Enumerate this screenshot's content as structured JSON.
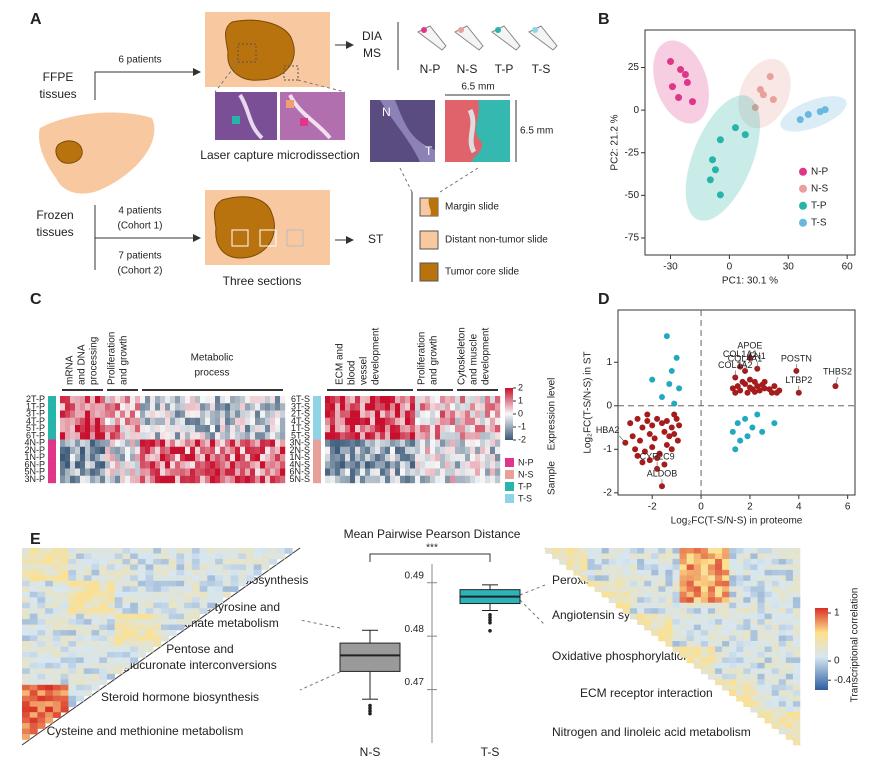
{
  "panel_labels": [
    "A",
    "B",
    "C",
    "D",
    "E"
  ],
  "panel_a": {
    "ffpe_label": [
      "FFPE",
      "tissues"
    ],
    "ffpe_patients": "6 patients",
    "lcm": "Laser capture microdissection",
    "dia_ms": [
      "DIA",
      "MS"
    ],
    "tubes": [
      "N-P",
      "N-S",
      "T-P",
      "T-S"
    ],
    "frozen_label": [
      "Frozen",
      "tissues"
    ],
    "cohort1": [
      "4 patients",
      "(Cohort 1)"
    ],
    "cohort2": [
      "7 patients",
      "(Cohort 2)"
    ],
    "sections": "Three sections",
    "st": "ST",
    "slide_letters": [
      "N",
      "T"
    ],
    "scale": [
      "6.5 mm",
      "6.5 mm"
    ],
    "slides": [
      "Margin slide",
      "Distant non-tumor slide",
      "Tumor core slide"
    ]
  },
  "chart_data": [
    {
      "type": "scatter",
      "xlabel": "PC1: 30.1 %",
      "ylabel": "PC2: 21.2 %",
      "xlim": [
        -43,
        64
      ],
      "ylim": [
        -85,
        47
      ],
      "xticks": [
        -30,
        0,
        30,
        60
      ],
      "yticks": [
        25,
        0,
        -25,
        -50,
        -75
      ],
      "legend": "right",
      "series": [
        {
          "name": "N-P",
          "color": "#e0368a",
          "x": [
            -30.0,
            -22.4,
            -24.9,
            -29.0,
            -21.4,
            -25.9,
            -18.8
          ],
          "y": [
            28.5,
            20.9,
            23.8,
            13.8,
            16.2,
            7.4,
            5.0
          ]
        },
        {
          "name": "N-S",
          "color": "#e8a09a",
          "x": [
            20.8,
            15.8,
            22.4,
            17.3,
            13.2
          ],
          "y": [
            19.7,
            12.1,
            6.2,
            9.1,
            1.5
          ]
        },
        {
          "name": "T-P",
          "color": "#26b5a8",
          "x": [
            3.1,
            -4.6,
            -8.6,
            -9.7,
            -4.6,
            8.1,
            -7.1
          ],
          "y": [
            -10.3,
            -17.4,
            -29.1,
            -40.9,
            -49.7,
            -14.4,
            -35.0
          ]
        },
        {
          "name": "T-S",
          "color": "#6ab8e0",
          "x": [
            48.8,
            40.2,
            46.3,
            36.1
          ],
          "y": [
            0.3,
            -2.6,
            -0.9,
            -5.6
          ]
        }
      ]
    },
    {
      "type": "scatter",
      "xlabel": "Log₂FC(T-S/N-S) in proteome",
      "ylabel": "Log₂FC(T-S/N-S)  in ST",
      "xlim": [
        -3.4,
        6.3
      ],
      "ylim": [
        -2.05,
        2.2
      ],
      "xticks": [
        -2,
        0,
        2,
        4,
        6
      ],
      "yticks": [
        1,
        0,
        -1,
        -2
      ],
      "series": [
        {
          "color": "#a51c1c",
          "x": [
            1.3,
            1.5,
            1.6,
            1.8,
            2.0,
            2.1,
            2.2,
            2.3,
            2.4,
            2.5,
            2.6,
            2.8,
            3.0,
            3.2,
            1.4,
            1.7,
            1.9,
            2.2,
            2.6,
            2.9,
            3.1,
            1.6,
            2.0,
            2.3,
            1.8,
            2.0,
            1.4,
            3.9,
            4.0,
            5.5,
            -2.9,
            -2.6,
            -2.4,
            -2.2,
            -2.0,
            -1.8,
            -1.6,
            -1.4,
            -1.2,
            -1.0,
            -0.9,
            -2.8,
            -2.5,
            -2.1,
            -1.9,
            -1.5,
            -1.3,
            -1.1,
            -2.7,
            -2.3,
            -2.0,
            -1.7,
            -1.4,
            -1.2,
            -0.95,
            -2.4,
            -2.1,
            -1.8,
            -1.5,
            -3.1,
            -1.8,
            -1.6,
            -2.2,
            -1.1,
            -2.6
          ],
          "y": [
            0.4,
            0.45,
            0.35,
            0.5,
            0.42,
            0.38,
            0.55,
            0.45,
            0.35,
            0.48,
            0.4,
            0.38,
            0.45,
            0.35,
            0.3,
            0.55,
            0.3,
            0.32,
            0.55,
            0.3,
            0.3,
            0.9,
            1.1,
            0.85,
            0.8,
            0.6,
            0.65,
            0.8,
            0.3,
            0.45,
            -0.4,
            -0.3,
            -0.5,
            -0.35,
            -0.45,
            -0.3,
            -0.4,
            -0.35,
            -0.5,
            -0.3,
            -0.45,
            -0.7,
            -0.8,
            -0.65,
            -0.75,
            -0.6,
            -0.7,
            -0.65,
            -1.0,
            -1.05,
            -0.95,
            -1.1,
            -0.9,
            -1.0,
            -0.8,
            -1.3,
            -1.25,
            -1.2,
            -1.35,
            -0.85,
            -1.45,
            -1.85,
            -0.2,
            -0.2,
            -1.15
          ]
        },
        {
          "color": "#22a8c0",
          "x": [
            -1.4,
            -1.0,
            -1.3,
            -0.9,
            -1.6,
            -1.1,
            -2.0,
            -1.2,
            1.3,
            1.5,
            1.8,
            2.1,
            1.6,
            2.3,
            1.4,
            2.5,
            3.0,
            1.9
          ],
          "y": [
            1.6,
            1.1,
            0.5,
            0.4,
            0.2,
            0.05,
            0.6,
            0.8,
            -0.6,
            -0.4,
            -0.3,
            -0.5,
            -0.8,
            -0.2,
            -1.0,
            -0.6,
            -0.4,
            -0.7
          ]
        }
      ],
      "annotations": [
        {
          "text": "COL1A1",
          "x": 1.6,
          "y": 0.9
        },
        {
          "text": "APOE",
          "x": 2.0,
          "y": 1.1
        },
        {
          "text": "FN1",
          "x": 2.3,
          "y": 0.85
        },
        {
          "text": "COL1A2",
          "x": 1.4,
          "y": 0.65
        },
        {
          "text": "COL4A1",
          "x": 1.8,
          "y": 0.8
        },
        {
          "text": "POSTN",
          "x": 3.9,
          "y": 0.8
        },
        {
          "text": "LTBP2",
          "x": 4.0,
          "y": 0.3
        },
        {
          "text": "THBS2",
          "x": 5.5,
          "y": 0.45
        },
        {
          "text": "HBA2",
          "x": -3.1,
          "y": -0.85
        },
        {
          "text": "CYP2C9",
          "x": -1.8,
          "y": -1.45
        },
        {
          "text": "ALDOB",
          "x": -1.6,
          "y": -1.85
        }
      ]
    },
    {
      "type": "box",
      "title": "Mean Pairwise Pearson Distance",
      "significance": "***",
      "categories": [
        "N-S",
        "T-S"
      ],
      "colors": [
        "#9a9a9a",
        "#2bb3b8"
      ],
      "ylim": [
        0.46,
        0.495
      ],
      "yticks": [
        0.49,
        0.48,
        0.47
      ],
      "boxes": [
        {
          "whislo": 0.4682,
          "q1": 0.4734,
          "med": 0.4764,
          "q3": 0.4787,
          "whishi": 0.4811,
          "fliers": [
            0.467,
            0.4665,
            0.466,
            0.4655
          ]
        },
        {
          "whislo": 0.4848,
          "q1": 0.4861,
          "med": 0.4874,
          "q3": 0.4887,
          "whishi": 0.4896,
          "fliers": [
            0.484,
            0.4835,
            0.483,
            0.4825,
            0.481
          ]
        }
      ]
    }
  ],
  "panel_c": {
    "left": {
      "groups": [
        [
          "mRNA",
          "and DNA",
          "processing"
        ],
        [
          "Proliferation",
          "and growth"
        ],
        [
          "Metabolic",
          "process"
        ]
      ],
      "rows": [
        "2T-P",
        "1T-P",
        "3T-P",
        "4T-P",
        "5T-P",
        "6T-P",
        "4N-P",
        "2N-P",
        "1N-P",
        "6N-P",
        "5N-P",
        "3N-P"
      ]
    },
    "right": {
      "groups": [
        [
          "ECM and",
          "blood",
          "vessel",
          "development"
        ],
        [
          "Proliferation",
          "and growth"
        ],
        [
          "Cytoskeleton",
          "and muscle",
          "development"
        ]
      ],
      "rows": [
        "6T-S",
        "3T-S",
        "2T-S",
        "4T-S",
        "1T-S",
        "5T-S",
        "3N-S",
        "2N-S",
        "1N-S",
        "4N-S",
        "6N-S",
        "5N-S"
      ]
    },
    "colorbar": {
      "title": "Expression level",
      "ticks": [
        2,
        1,
        0,
        -1,
        -2
      ]
    },
    "sample_legend": {
      "title": "Sample",
      "items": [
        "N-P",
        "N-S",
        "T-P",
        "T-S"
      ],
      "colors": [
        "#e0368a",
        "#e8a09a",
        "#26b5a8",
        "#8fd3e6"
      ]
    }
  },
  "panel_e": {
    "left_pathways": [
      "O glycan biosynthesis",
      [
        "Aspartate tyrosine and",
        "glutamate metabolism"
      ],
      [
        "Pentose and",
        "glucuronate interconversions"
      ],
      "Steroid hormone biosynthesis",
      "Cysteine and methionine metabolism"
    ],
    "right_pathways": [
      "Peroxisome",
      "Angiotensin system",
      "Oxidative phosphorylation",
      "ECM receptor interaction",
      "Nitrogen and linoleic acid metabolism"
    ],
    "colorbar": {
      "title": "Transcriptional correlation",
      "ticks": [
        1,
        0,
        -0.4
      ]
    }
  }
}
